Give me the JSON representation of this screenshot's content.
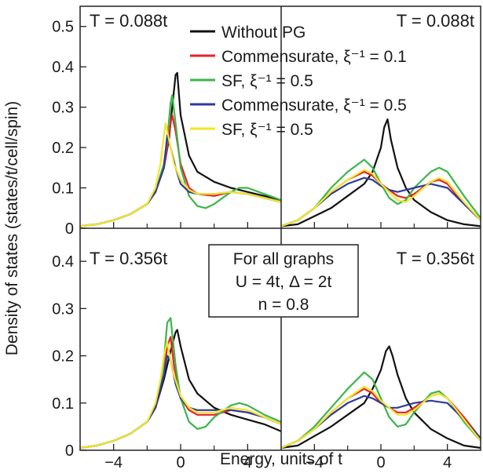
{
  "figure": {
    "ylabel": "Density of states (states/t/cell/spin)",
    "xlabel": "Energy, units of t",
    "info_box": [
      "For all graphs",
      "U = 4t, Δ = 2t",
      "n = 0.8"
    ],
    "colors": {
      "without_pg": "#111111",
      "comm_01": "#e8212a",
      "sf_05": "#3cb54a",
      "comm_05": "#2e3a9a",
      "sf_05_b": "#f2e62a"
    }
  },
  "legend": [
    {
      "key": "without_pg",
      "label": "Without PG"
    },
    {
      "key": "comm_01",
      "label": "Commensurate, ξ⁻¹ = 0.1"
    },
    {
      "key": "sf_05",
      "label": "SF, ξ⁻¹ = 0.5"
    },
    {
      "key": "comm_05",
      "label": "Commensurate, ξ⁻¹ = 0.5"
    },
    {
      "key": "sf_05_b",
      "label": "SF, ξ⁻¹ = 0.5"
    }
  ],
  "chart_data": [
    {
      "type": "line",
      "panel": "top-left",
      "label": "T = 0.088t",
      "xlim": [
        -6,
        6
      ],
      "ylim": [
        0,
        0.55
      ],
      "xticks": [
        -4,
        0,
        4
      ],
      "yticks": [
        0,
        0.1,
        0.2,
        0.3,
        0.4,
        0.5
      ],
      "series": [
        {
          "key": "without_pg",
          "x": [
            -6,
            -5,
            -4,
            -3,
            -2,
            -1.5,
            -1,
            -0.7,
            -0.5,
            -0.3,
            -0.2,
            0,
            0.5,
            1,
            2,
            3,
            4,
            5,
            6
          ],
          "y": [
            0.005,
            0.01,
            0.02,
            0.035,
            0.06,
            0.09,
            0.15,
            0.22,
            0.3,
            0.38,
            0.385,
            0.28,
            0.18,
            0.14,
            0.115,
            0.1,
            0.09,
            0.08,
            0.07
          ]
        },
        {
          "key": "comm_01",
          "x": [
            -6,
            -5,
            -4,
            -3,
            -2,
            -1.5,
            -1,
            -0.8,
            -0.6,
            -0.5,
            -0.3,
            0,
            0.5,
            1,
            2,
            3,
            4,
            5,
            6
          ],
          "y": [
            0.005,
            0.01,
            0.02,
            0.035,
            0.06,
            0.09,
            0.15,
            0.2,
            0.26,
            0.28,
            0.24,
            0.16,
            0.1,
            0.085,
            0.08,
            0.09,
            0.085,
            0.075,
            0.065
          ]
        },
        {
          "key": "sf_05",
          "x": [
            -6,
            -5,
            -4,
            -3,
            -2,
            -1.5,
            -1,
            -0.8,
            -0.6,
            -0.5,
            -0.3,
            0,
            0.5,
            1,
            1.5,
            2,
            3,
            3.5,
            4,
            5,
            6
          ],
          "y": [
            0.005,
            0.01,
            0.02,
            0.035,
            0.06,
            0.09,
            0.16,
            0.22,
            0.31,
            0.33,
            0.26,
            0.15,
            0.08,
            0.055,
            0.05,
            0.06,
            0.09,
            0.1,
            0.1,
            0.085,
            0.07
          ]
        },
        {
          "key": "comm_05",
          "x": [
            -6,
            -5,
            -4,
            -3,
            -2,
            -1.5,
            -1,
            -0.9,
            -0.8,
            -0.6,
            -0.3,
            0,
            0.5,
            1,
            2,
            3,
            4,
            5,
            6
          ],
          "y": [
            0.005,
            0.01,
            0.02,
            0.035,
            0.06,
            0.09,
            0.15,
            0.19,
            0.23,
            0.2,
            0.15,
            0.11,
            0.09,
            0.085,
            0.085,
            0.09,
            0.085,
            0.075,
            0.065
          ]
        },
        {
          "key": "sf_05_b",
          "x": [
            -6,
            -5,
            -4,
            -3,
            -2,
            -1.5,
            -1.2,
            -1,
            -0.9,
            -0.7,
            -0.4,
            0,
            0.5,
            1,
            2,
            3,
            4,
            5,
            6
          ],
          "y": [
            0.005,
            0.01,
            0.02,
            0.035,
            0.06,
            0.1,
            0.16,
            0.23,
            0.26,
            0.22,
            0.16,
            0.12,
            0.095,
            0.085,
            0.085,
            0.09,
            0.085,
            0.075,
            0.065
          ]
        }
      ]
    },
    {
      "type": "line",
      "panel": "top-right",
      "label": "T = 0.088t",
      "xlim": [
        -6,
        6
      ],
      "ylim": [
        0,
        0.55
      ],
      "xticks": [
        -4,
        0,
        4
      ],
      "yticks": [
        0,
        0.1,
        0.2,
        0.3,
        0.4,
        0.5
      ],
      "series": [
        {
          "key": "without_pg",
          "x": [
            -6,
            -5,
            -4,
            -3,
            -2,
            -1,
            -0.5,
            0,
            0.2,
            0.4,
            0.6,
            1,
            1.5,
            2,
            3,
            4,
            5,
            6
          ],
          "y": [
            0.005,
            0.01,
            0.03,
            0.05,
            0.08,
            0.11,
            0.14,
            0.2,
            0.25,
            0.27,
            0.22,
            0.15,
            0.1,
            0.07,
            0.04,
            0.02,
            0.01,
            0.005
          ]
        },
        {
          "key": "comm_01",
          "x": [
            -6,
            -5,
            -4,
            -3,
            -2,
            -1,
            -0.5,
            0,
            1,
            1.5,
            2,
            3,
            3.5,
            4,
            5,
            6
          ],
          "y": [
            0.005,
            0.02,
            0.05,
            0.09,
            0.12,
            0.14,
            0.13,
            0.11,
            0.08,
            0.075,
            0.085,
            0.115,
            0.12,
            0.11,
            0.06,
            0.02
          ]
        },
        {
          "key": "sf_05",
          "x": [
            -6,
            -5,
            -4,
            -3,
            -2,
            -1,
            -0.5,
            0,
            0.5,
            1,
            1.5,
            2,
            3,
            3.5,
            4,
            5,
            6
          ],
          "y": [
            0.005,
            0.02,
            0.05,
            0.1,
            0.14,
            0.17,
            0.15,
            0.11,
            0.075,
            0.06,
            0.07,
            0.1,
            0.14,
            0.15,
            0.14,
            0.08,
            0.025
          ]
        },
        {
          "key": "comm_05",
          "x": [
            -6,
            -5,
            -4,
            -3,
            -2,
            -1,
            -0.5,
            0,
            0.5,
            1,
            2,
            3,
            4,
            5,
            6
          ],
          "y": [
            0.005,
            0.02,
            0.05,
            0.085,
            0.11,
            0.125,
            0.12,
            0.105,
            0.095,
            0.09,
            0.1,
            0.11,
            0.1,
            0.06,
            0.02
          ]
        },
        {
          "key": "sf_05_b",
          "x": [
            -6,
            -5,
            -4,
            -3,
            -2,
            -1,
            -0.5,
            0,
            1,
            1.5,
            2,
            3,
            3.5,
            4,
            5,
            6
          ],
          "y": [
            0.005,
            0.02,
            0.05,
            0.09,
            0.12,
            0.145,
            0.135,
            0.11,
            0.07,
            0.065,
            0.08,
            0.115,
            0.125,
            0.115,
            0.065,
            0.02
          ]
        }
      ]
    },
    {
      "type": "line",
      "panel": "bottom-left",
      "label": "T = 0.356t",
      "xlim": [
        -6,
        6
      ],
      "ylim": [
        0,
        0.47
      ],
      "xticks": [
        -4,
        0,
        4
      ],
      "yticks": [
        0,
        0.1,
        0.2,
        0.3,
        0.4
      ],
      "series": [
        {
          "key": "without_pg",
          "x": [
            -6,
            -5,
            -4,
            -3,
            -2,
            -1.5,
            -1,
            -0.6,
            -0.3,
            -0.2,
            0,
            0.5,
            1,
            2,
            3,
            4,
            5,
            6
          ],
          "y": [
            0.005,
            0.01,
            0.02,
            0.035,
            0.06,
            0.09,
            0.15,
            0.21,
            0.25,
            0.255,
            0.22,
            0.15,
            0.12,
            0.09,
            0.075,
            0.065,
            0.055,
            0.04
          ]
        },
        {
          "key": "comm_01",
          "x": [
            -6,
            -5,
            -4,
            -3,
            -2,
            -1.5,
            -1,
            -0.8,
            -0.6,
            -0.4,
            0,
            0.5,
            1,
            2,
            3,
            4,
            5,
            6
          ],
          "y": [
            0.005,
            0.01,
            0.02,
            0.035,
            0.06,
            0.09,
            0.16,
            0.22,
            0.24,
            0.18,
            0.11,
            0.085,
            0.075,
            0.075,
            0.085,
            0.08,
            0.07,
            0.055
          ]
        },
        {
          "key": "sf_05",
          "x": [
            -6,
            -5,
            -4,
            -3,
            -2,
            -1.5,
            -1.2,
            -1,
            -0.8,
            -0.6,
            -0.3,
            0,
            0.5,
            1,
            1.5,
            2,
            3,
            3.5,
            4,
            5,
            6
          ],
          "y": [
            0.005,
            0.01,
            0.02,
            0.035,
            0.06,
            0.09,
            0.14,
            0.19,
            0.27,
            0.28,
            0.18,
            0.11,
            0.06,
            0.045,
            0.05,
            0.07,
            0.095,
            0.1,
            0.095,
            0.075,
            0.06
          ]
        },
        {
          "key": "comm_05",
          "x": [
            -6,
            -5,
            -4,
            -3,
            -2,
            -1.5,
            -1,
            -0.8,
            -0.6,
            -0.3,
            0,
            0.5,
            1,
            2,
            3,
            4,
            5,
            6
          ],
          "y": [
            0.005,
            0.01,
            0.02,
            0.035,
            0.06,
            0.09,
            0.16,
            0.2,
            0.19,
            0.14,
            0.11,
            0.09,
            0.085,
            0.085,
            0.085,
            0.08,
            0.07,
            0.055
          ]
        },
        {
          "key": "sf_05_b",
          "x": [
            -6,
            -5,
            -4,
            -3,
            -2,
            -1.5,
            -1.2,
            -1,
            -0.8,
            -0.5,
            0,
            0.5,
            1,
            2,
            3,
            4,
            5,
            6
          ],
          "y": [
            0.005,
            0.01,
            0.02,
            0.035,
            0.06,
            0.1,
            0.15,
            0.2,
            0.23,
            0.17,
            0.115,
            0.09,
            0.08,
            0.08,
            0.09,
            0.085,
            0.07,
            0.055
          ]
        }
      ]
    },
    {
      "type": "line",
      "panel": "bottom-right",
      "label": "T = 0.356t",
      "xlim": [
        -6,
        6
      ],
      "ylim": [
        0,
        0.47
      ],
      "xticks": [
        -4,
        0,
        4
      ],
      "yticks": [
        0,
        0.1,
        0.2,
        0.3,
        0.4
      ],
      "series": [
        {
          "key": "without_pg",
          "x": [
            -6,
            -5,
            -4,
            -3,
            -2,
            -1,
            -0.5,
            0,
            0.3,
            0.5,
            0.7,
            1,
            1.5,
            2,
            3,
            4,
            5,
            6
          ],
          "y": [
            0.005,
            0.01,
            0.03,
            0.05,
            0.075,
            0.1,
            0.13,
            0.17,
            0.21,
            0.22,
            0.2,
            0.16,
            0.11,
            0.08,
            0.045,
            0.025,
            0.01,
            0.005
          ]
        },
        {
          "key": "comm_01",
          "x": [
            -6,
            -5,
            -4,
            -3,
            -2,
            -1,
            -0.5,
            0,
            1,
            1.5,
            2,
            3,
            3.5,
            4,
            5,
            6
          ],
          "y": [
            0.005,
            0.02,
            0.045,
            0.08,
            0.11,
            0.13,
            0.12,
            0.1,
            0.08,
            0.08,
            0.09,
            0.115,
            0.12,
            0.11,
            0.07,
            0.025
          ]
        },
        {
          "key": "sf_05",
          "x": [
            -6,
            -5,
            -4,
            -3,
            -2,
            -1,
            -0.5,
            0,
            0.5,
            1,
            1.5,
            2,
            3,
            3.5,
            4,
            5,
            6
          ],
          "y": [
            0.005,
            0.02,
            0.05,
            0.09,
            0.13,
            0.165,
            0.15,
            0.11,
            0.07,
            0.05,
            0.055,
            0.08,
            0.12,
            0.125,
            0.11,
            0.06,
            0.02
          ]
        },
        {
          "key": "comm_05",
          "x": [
            -6,
            -5,
            -4,
            -3,
            -2,
            -1,
            -0.5,
            0,
            0.5,
            1,
            2,
            3,
            4,
            5,
            6
          ],
          "y": [
            0.005,
            0.02,
            0.045,
            0.075,
            0.1,
            0.115,
            0.11,
            0.1,
            0.09,
            0.09,
            0.1,
            0.105,
            0.1,
            0.065,
            0.025
          ]
        },
        {
          "key": "sf_05_b",
          "x": [
            -6,
            -5,
            -4,
            -3,
            -2,
            -1,
            -0.5,
            0,
            1,
            1.5,
            2,
            3,
            3.5,
            4,
            5,
            6
          ],
          "y": [
            0.005,
            0.02,
            0.045,
            0.08,
            0.11,
            0.135,
            0.125,
            0.105,
            0.075,
            0.075,
            0.085,
            0.115,
            0.12,
            0.11,
            0.065,
            0.02
          ]
        }
      ]
    }
  ]
}
